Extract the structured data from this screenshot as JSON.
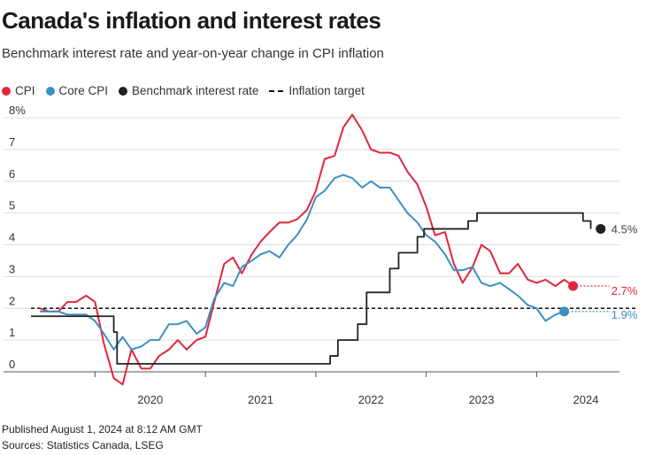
{
  "header": {
    "title": "Canada's inflation and interest rates",
    "subtitle": "Benchmark interest rate and year-on-year change in CPI inflation"
  },
  "legend": {
    "cpi": "CPI",
    "core_cpi": "Core CPI",
    "benchmark": "Benchmark interest rate",
    "target": "Inflation target"
  },
  "colors": {
    "cpi": "#e0263b",
    "core_cpi": "#3d8fc4",
    "benchmark": "#222222",
    "target": "#111111",
    "grid": "#dddddd",
    "axis": "#555555"
  },
  "footer": {
    "published": "Published August 1, 2024 at 8:12 AM GMT",
    "sources": "Sources: Statistics Canada, LSEG"
  },
  "chart_data": {
    "type": "line",
    "title": "Canada's inflation and interest rates",
    "xlabel": "",
    "ylabel": "",
    "xlim": [
      2019.42,
      2024.67
    ],
    "ylim": [
      0,
      8
    ],
    "y_ticks": [
      "0",
      "1",
      "2",
      "3",
      "4",
      "5",
      "6",
      "7",
      "8%"
    ],
    "x_ticks": [
      {
        "label": "2020",
        "value": 2020.0
      },
      {
        "label": "2021",
        "value": 2021.0
      },
      {
        "label": "2022",
        "value": 2022.0
      },
      {
        "label": "2023",
        "value": 2023.0
      },
      {
        "label": "2024",
        "value": 2024.0
      }
    ],
    "grid": true,
    "target": 2,
    "series": [
      {
        "name": "CPI",
        "key": "cpi",
        "end_label": "2.7%",
        "points": [
          [
            2019.5,
            2.0
          ],
          [
            2019.58,
            1.9
          ],
          [
            2019.67,
            1.9
          ],
          [
            2019.75,
            2.2
          ],
          [
            2019.83,
            2.2
          ],
          [
            2019.92,
            2.4
          ],
          [
            2020.0,
            2.2
          ],
          [
            2020.08,
            0.9
          ],
          [
            2020.17,
            -0.2
          ],
          [
            2020.25,
            -0.4
          ],
          [
            2020.33,
            0.7
          ],
          [
            2020.42,
            0.1
          ],
          [
            2020.5,
            0.1
          ],
          [
            2020.58,
            0.5
          ],
          [
            2020.67,
            0.7
          ],
          [
            2020.75,
            1.0
          ],
          [
            2020.83,
            0.7
          ],
          [
            2020.92,
            1.0
          ],
          [
            2021.0,
            1.1
          ],
          [
            2021.08,
            2.2
          ],
          [
            2021.17,
            3.4
          ],
          [
            2021.25,
            3.6
          ],
          [
            2021.33,
            3.1
          ],
          [
            2021.42,
            3.7
          ],
          [
            2021.5,
            4.1
          ],
          [
            2021.58,
            4.4
          ],
          [
            2021.67,
            4.7
          ],
          [
            2021.75,
            4.7
          ],
          [
            2021.83,
            4.8
          ],
          [
            2021.92,
            5.1
          ],
          [
            2022.0,
            5.7
          ],
          [
            2022.08,
            6.7
          ],
          [
            2022.17,
            6.8
          ],
          [
            2022.25,
            7.7
          ],
          [
            2022.33,
            8.1
          ],
          [
            2022.42,
            7.6
          ],
          [
            2022.5,
            7.0
          ],
          [
            2022.58,
            6.9
          ],
          [
            2022.67,
            6.9
          ],
          [
            2022.75,
            6.8
          ],
          [
            2022.83,
            6.3
          ],
          [
            2022.92,
            5.9
          ],
          [
            2023.0,
            5.2
          ],
          [
            2023.08,
            4.3
          ],
          [
            2023.17,
            4.4
          ],
          [
            2023.25,
            3.4
          ],
          [
            2023.33,
            2.8
          ],
          [
            2023.42,
            3.3
          ],
          [
            2023.5,
            4.0
          ],
          [
            2023.58,
            3.8
          ],
          [
            2023.67,
            3.1
          ],
          [
            2023.75,
            3.1
          ],
          [
            2023.83,
            3.4
          ],
          [
            2023.92,
            2.9
          ],
          [
            2024.0,
            2.8
          ],
          [
            2024.08,
            2.9
          ],
          [
            2024.17,
            2.7
          ],
          [
            2024.25,
            2.9
          ],
          [
            2024.33,
            2.7
          ]
        ]
      },
      {
        "name": "Core CPI",
        "key": "core_cpi",
        "end_label": "1.9%",
        "points": [
          [
            2019.5,
            1.9
          ],
          [
            2019.58,
            1.9
          ],
          [
            2019.67,
            1.9
          ],
          [
            2019.75,
            1.8
          ],
          [
            2019.83,
            1.8
          ],
          [
            2019.92,
            1.8
          ],
          [
            2020.0,
            1.6
          ],
          [
            2020.08,
            1.2
          ],
          [
            2020.17,
            0.7
          ],
          [
            2020.25,
            1.1
          ],
          [
            2020.33,
            0.7
          ],
          [
            2020.42,
            0.8
          ],
          [
            2020.5,
            1.0
          ],
          [
            2020.58,
            1.0
          ],
          [
            2020.67,
            1.5
          ],
          [
            2020.75,
            1.5
          ],
          [
            2020.83,
            1.6
          ],
          [
            2020.92,
            1.2
          ],
          [
            2021.0,
            1.4
          ],
          [
            2021.08,
            2.3
          ],
          [
            2021.17,
            2.8
          ],
          [
            2021.25,
            2.7
          ],
          [
            2021.33,
            3.3
          ],
          [
            2021.42,
            3.5
          ],
          [
            2021.5,
            3.7
          ],
          [
            2021.58,
            3.8
          ],
          [
            2021.67,
            3.6
          ],
          [
            2021.75,
            4.0
          ],
          [
            2021.83,
            4.3
          ],
          [
            2021.92,
            4.8
          ],
          [
            2022.0,
            5.5
          ],
          [
            2022.08,
            5.7
          ],
          [
            2022.17,
            6.1
          ],
          [
            2022.25,
            6.2
          ],
          [
            2022.33,
            6.1
          ],
          [
            2022.42,
            5.8
          ],
          [
            2022.5,
            6.0
          ],
          [
            2022.58,
            5.8
          ],
          [
            2022.67,
            5.8
          ],
          [
            2022.75,
            5.4
          ],
          [
            2022.83,
            5.0
          ],
          [
            2022.92,
            4.7
          ],
          [
            2023.0,
            4.3
          ],
          [
            2023.08,
            4.1
          ],
          [
            2023.17,
            3.7
          ],
          [
            2023.25,
            3.2
          ],
          [
            2023.33,
            3.2
          ],
          [
            2023.42,
            3.3
          ],
          [
            2023.5,
            2.8
          ],
          [
            2023.58,
            2.7
          ],
          [
            2023.67,
            2.8
          ],
          [
            2023.75,
            2.6
          ],
          [
            2023.83,
            2.4
          ],
          [
            2023.92,
            2.1
          ],
          [
            2024.0,
            2.0
          ],
          [
            2024.08,
            1.6
          ],
          [
            2024.17,
            1.8
          ],
          [
            2024.25,
            1.9
          ]
        ]
      },
      {
        "name": "Benchmark interest rate",
        "key": "benchmark",
        "step": true,
        "end_label": "4.5%",
        "points": [
          [
            2019.42,
            1.75
          ],
          [
            2020.17,
            1.25
          ],
          [
            2020.2,
            0.25
          ],
          [
            2022.13,
            0.5
          ],
          [
            2022.2,
            1.0
          ],
          [
            2022.38,
            1.5
          ],
          [
            2022.46,
            2.5
          ],
          [
            2022.67,
            3.25
          ],
          [
            2022.75,
            3.75
          ],
          [
            2022.92,
            4.25
          ],
          [
            2022.98,
            4.5
          ],
          [
            2023.38,
            4.75
          ],
          [
            2023.46,
            5.0
          ],
          [
            2024.42,
            4.75
          ],
          [
            2024.49,
            4.5
          ]
        ]
      }
    ]
  }
}
